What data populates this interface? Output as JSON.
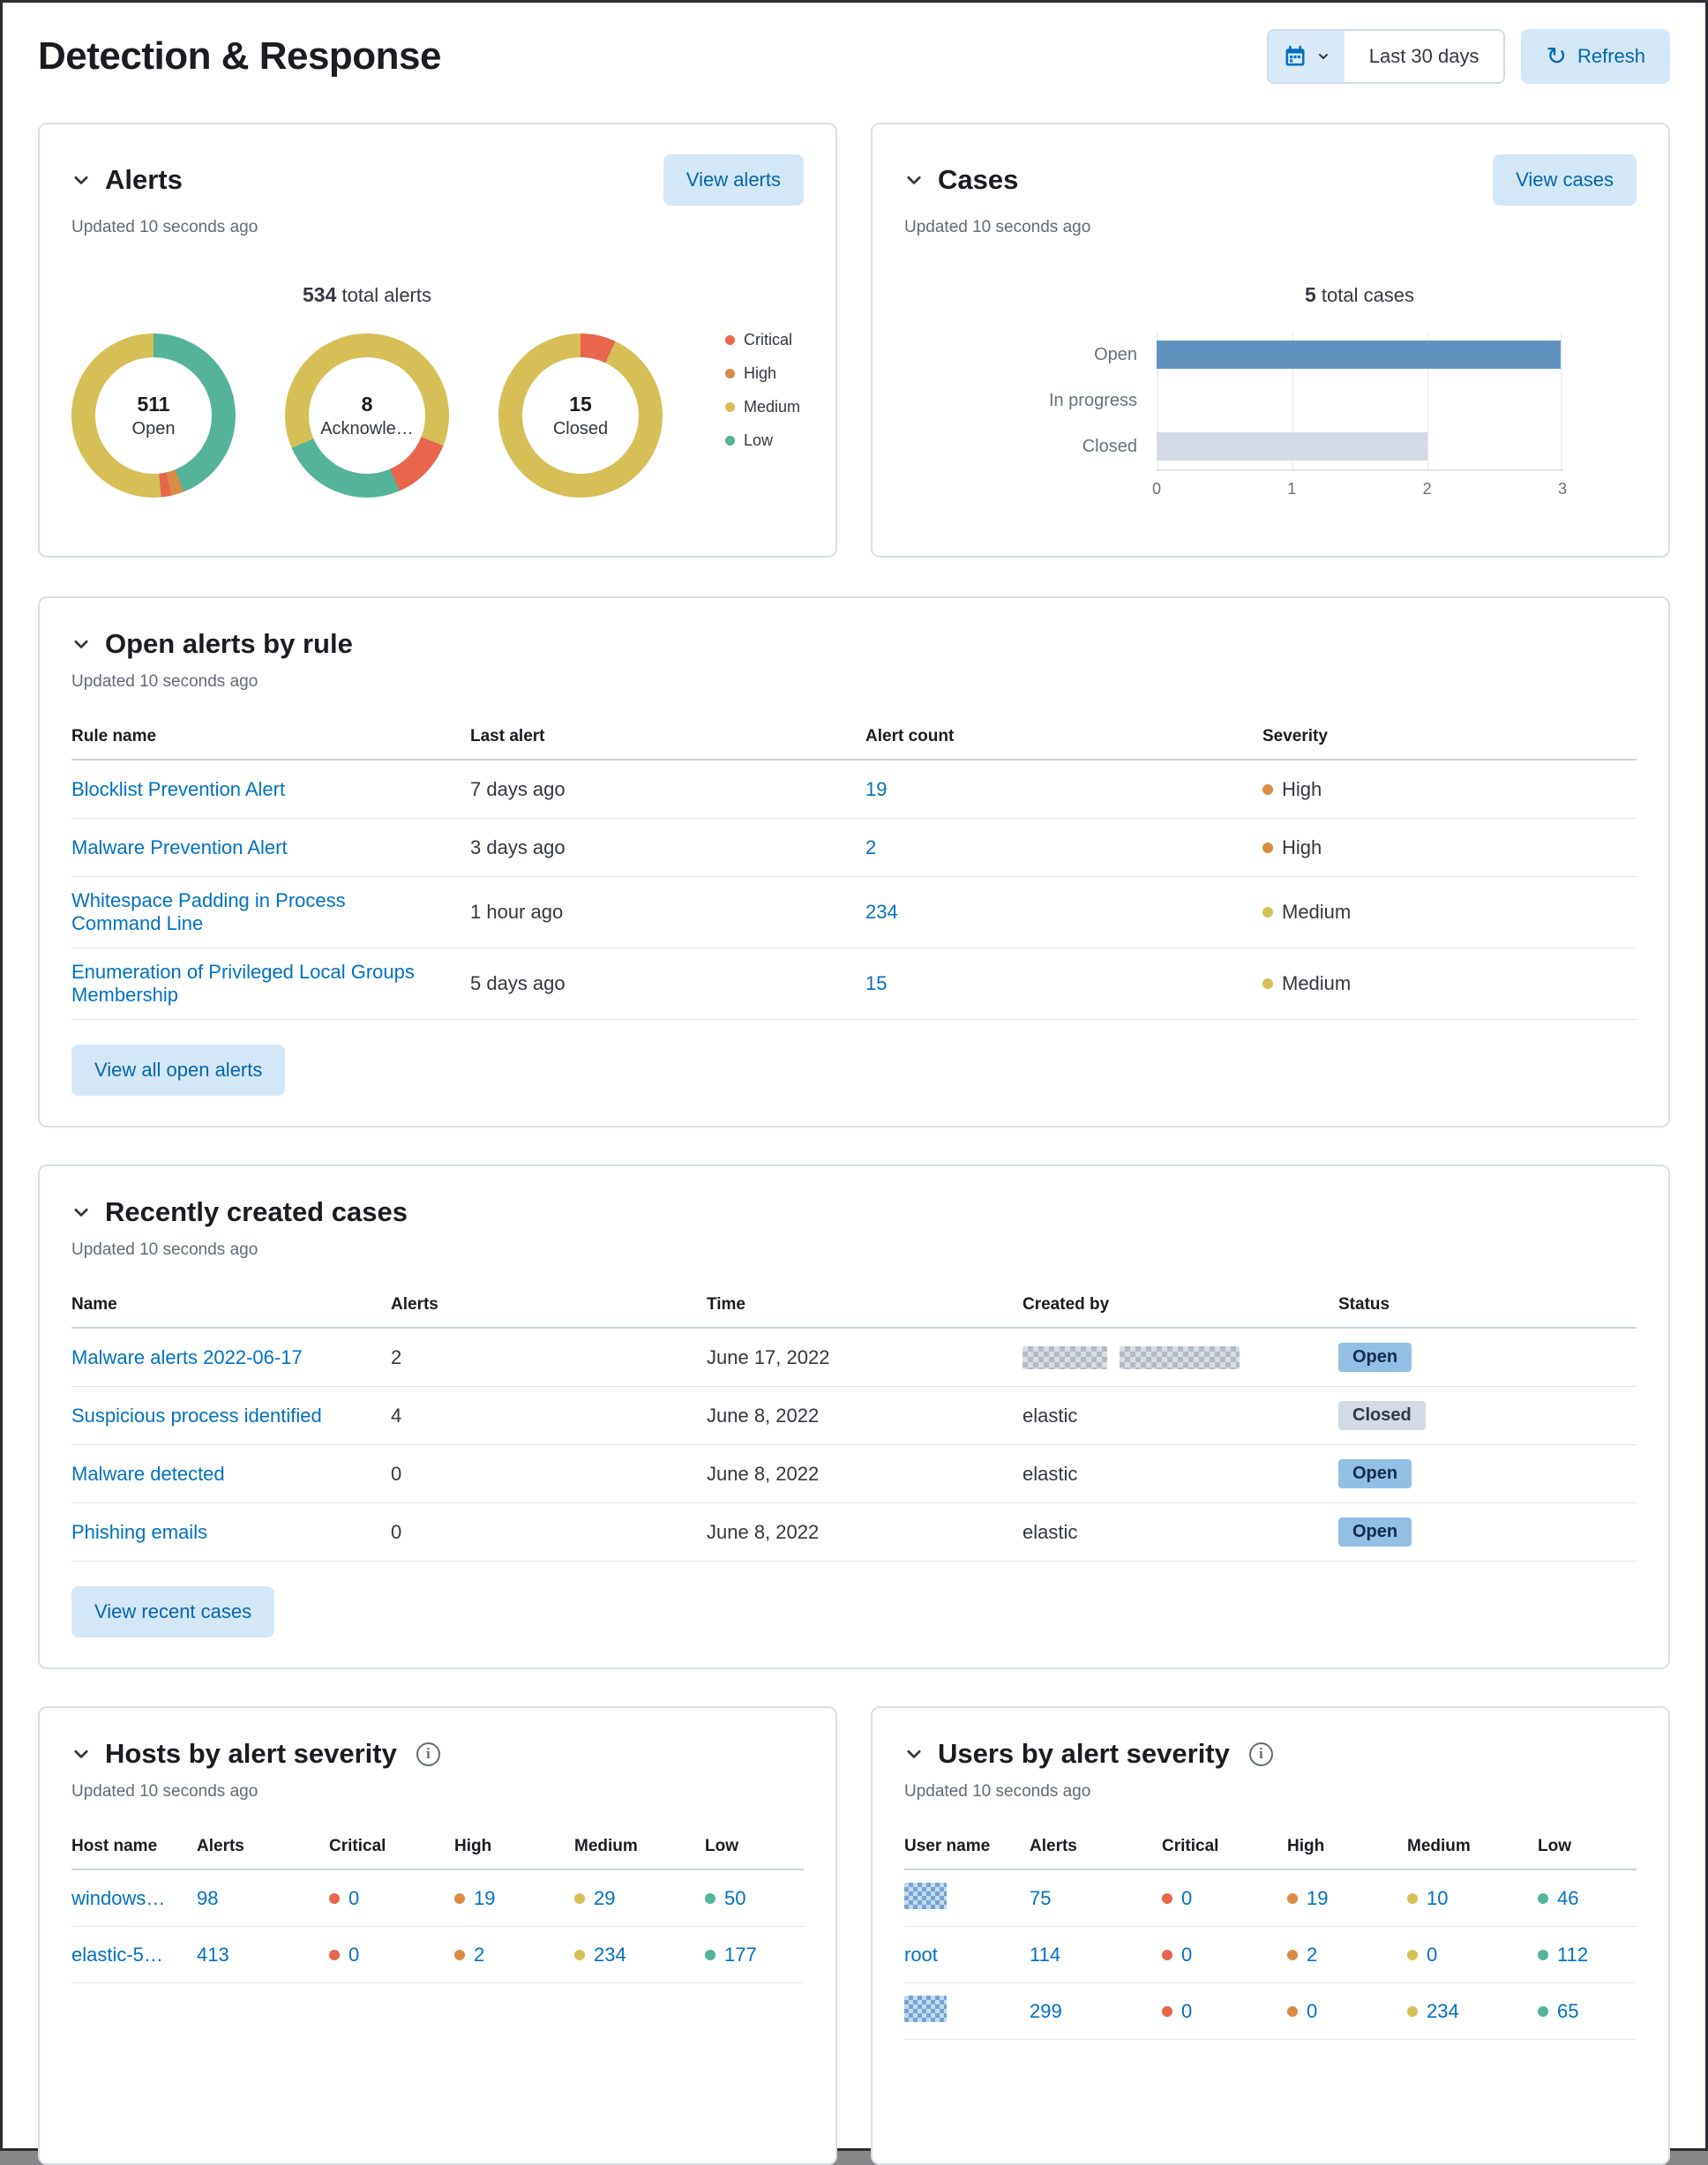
{
  "colors": {
    "critical": "#e7664c",
    "high": "#da8b45",
    "medium": "#d6bf57",
    "low": "#54b399",
    "link": "#0071c2",
    "bar_open": "#6092c0",
    "bar_closed": "#d3dae6"
  },
  "header": {
    "title": "Detection & Response",
    "date_range": "Last 30 days",
    "refresh": "Refresh"
  },
  "alerts_panel": {
    "title": "Alerts",
    "view_button": "View alerts",
    "updated": "Updated 10 seconds ago",
    "total_value": "534",
    "total_label": "total alerts",
    "chart_data": {
      "type": "donut",
      "title": "534 total alerts",
      "donuts": [
        {
          "label": "Open",
          "value": "511",
          "segments": [
            {
              "severity": "low",
              "pct": 44
            },
            {
              "severity": "high",
              "pct": 2.5
            },
            {
              "severity": "critical",
              "pct": 2
            },
            {
              "severity": "medium",
              "pct": 51.5
            }
          ]
        },
        {
          "label": "Acknowle…",
          "value": "8",
          "segments": [
            {
              "severity": "medium",
              "pct": 31
            },
            {
              "severity": "critical",
              "pct": 12.5
            },
            {
              "severity": "low",
              "pct": 25
            },
            {
              "severity": "medium",
              "pct": 31.5
            }
          ]
        },
        {
          "label": "Closed",
          "value": "15",
          "segments": [
            {
              "severity": "critical",
              "pct": 7
            },
            {
              "severity": "medium",
              "pct": 93
            }
          ]
        }
      ],
      "legend": [
        {
          "label": "Critical",
          "severity": "critical"
        },
        {
          "label": "High",
          "severity": "high"
        },
        {
          "label": "Medium",
          "severity": "medium"
        },
        {
          "label": "Low",
          "severity": "low"
        }
      ]
    }
  },
  "cases_panel": {
    "title": "Cases",
    "view_button": "View cases",
    "updated": "Updated 10 seconds ago",
    "total_value": "5",
    "total_label": "total cases",
    "chart_data": {
      "type": "bar",
      "orientation": "horizontal",
      "title": "5 total cases",
      "categories": [
        "Open",
        "In progress",
        "Closed"
      ],
      "values": [
        3,
        0,
        2
      ],
      "xlim": [
        0,
        3
      ],
      "xticks": [
        "0",
        "1",
        "2",
        "3"
      ],
      "bar_colors": [
        "#6092c0",
        "#6092c0",
        "#d3dae6"
      ],
      "grid": true,
      "legend": false
    }
  },
  "open_alerts_panel": {
    "title": "Open alerts by rule",
    "updated": "Updated 10 seconds ago",
    "columns": {
      "rule": "Rule name",
      "last": "Last alert",
      "count": "Alert count",
      "severity": "Severity"
    },
    "rows": [
      {
        "rule": "Blocklist Prevention Alert",
        "last": "7 days ago",
        "count": "19",
        "severity": "High",
        "severity_level": "high"
      },
      {
        "rule": "Malware Prevention Alert",
        "last": "3 days ago",
        "count": "2",
        "severity": "High",
        "severity_level": "high"
      },
      {
        "rule": "Whitespace Padding in Process Command Line",
        "last": "1 hour ago",
        "count": "234",
        "severity": "Medium",
        "severity_level": "medium"
      },
      {
        "rule": "Enumeration of Privileged Local Groups Membership",
        "last": "5 days ago",
        "count": "15",
        "severity": "Medium",
        "severity_level": "medium"
      }
    ],
    "view_button": "View all open alerts"
  },
  "recent_cases_panel": {
    "title": "Recently created cases",
    "updated": "Updated 10 seconds ago",
    "columns": {
      "name": "Name",
      "alerts": "Alerts",
      "time": "Time",
      "created_by": "Created by",
      "status": "Status"
    },
    "rows": [
      {
        "name": "Malware alerts 2022-06-17",
        "alerts": "2",
        "time": "June 17, 2022",
        "created_by": "",
        "created_by_redacted": true,
        "status": "Open",
        "status_style": "open"
      },
      {
        "name": "Suspicious process identified",
        "alerts": "4",
        "time": "June 8, 2022",
        "created_by": "elastic",
        "created_by_redacted": false,
        "status": "Closed",
        "status_style": "closed"
      },
      {
        "name": "Malware detected",
        "alerts": "0",
        "time": "June 8, 2022",
        "created_by": "elastic",
        "created_by_redacted": false,
        "status": "Open",
        "status_style": "open"
      },
      {
        "name": "Phishing emails",
        "alerts": "0",
        "time": "June 8, 2022",
        "created_by": "elastic",
        "created_by_redacted": false,
        "status": "Open",
        "status_style": "open"
      }
    ],
    "view_button": "View recent cases"
  },
  "hosts_panel": {
    "title": "Hosts by alert severity",
    "updated": "Updated 10 seconds ago",
    "columns": {
      "name": "Host name",
      "alerts": "Alerts",
      "critical": "Critical",
      "high": "High",
      "medium": "Medium",
      "low": "Low"
    },
    "rows": [
      {
        "name": "windows…",
        "alerts": "98",
        "critical": "0",
        "high": "19",
        "medium": "29",
        "low": "50"
      },
      {
        "name": "elastic-5…",
        "alerts": "413",
        "critical": "0",
        "high": "2",
        "medium": "234",
        "low": "177"
      }
    ]
  },
  "users_panel": {
    "title": "Users by alert severity",
    "updated": "Updated 10 seconds ago",
    "columns": {
      "name": "User name",
      "alerts": "Alerts",
      "critical": "Critical",
      "high": "High",
      "medium": "Medium",
      "low": "Low"
    },
    "rows": [
      {
        "name": "",
        "redacted": true,
        "alerts": "75",
        "critical": "0",
        "high": "19",
        "medium": "10",
        "low": "46"
      },
      {
        "name": "root",
        "redacted": false,
        "alerts": "114",
        "critical": "0",
        "high": "2",
        "medium": "0",
        "low": "112"
      },
      {
        "name": "",
        "redacted": true,
        "alerts": "299",
        "critical": "0",
        "high": "0",
        "medium": "234",
        "low": "65"
      }
    ]
  }
}
